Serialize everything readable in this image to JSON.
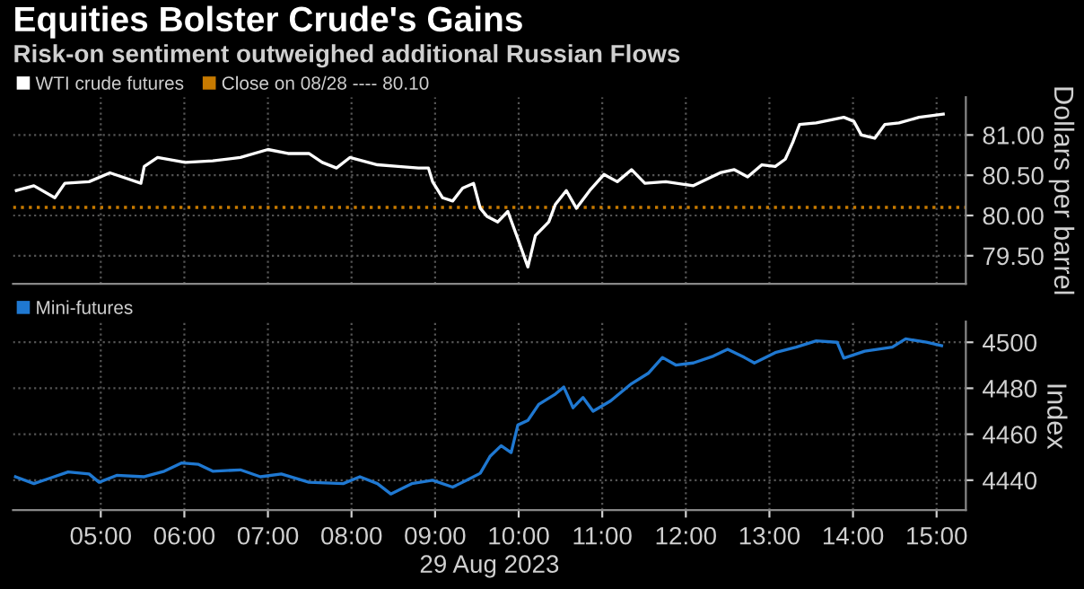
{
  "chart_data": [
    {
      "type": "line",
      "title": "Equities Bolster Crude's Gains",
      "subtitle": "Risk-on sentiment outweighed additional Russian Flows",
      "ylabel": "Dollars per barrel",
      "legend": "top left",
      "grid": true,
      "tick_labels": "y",
      "xlim": [
        3.95,
        15.35
      ],
      "xticks": [
        {
          "value": 5,
          "label": null
        },
        {
          "value": 6,
          "label": null
        },
        {
          "value": 7,
          "label": null
        },
        {
          "value": 8,
          "label": null
        },
        {
          "value": 9,
          "label": null
        },
        {
          "value": 10,
          "label": null
        },
        {
          "value": 11,
          "label": null
        },
        {
          "value": 12,
          "label": null
        },
        {
          "value": 13,
          "label": null
        },
        {
          "value": 14,
          "label": null
        },
        {
          "value": 15,
          "label": null
        }
      ],
      "ylim": [
        79.15,
        81.47
      ],
      "yticks": [
        {
          "value": 79.5,
          "label": "79.50"
        },
        {
          "value": 80,
          "label": "80.00"
        },
        {
          "value": 80.5,
          "label": "80.50"
        },
        {
          "value": 81,
          "label": "81.00"
        }
      ],
      "ref_lines": [
        {
          "axis": "y",
          "value": 80.1,
          "label": "Close on 08/28 ---- 80.10",
          "color": "#c77a00",
          "line_style": "dotted"
        }
      ],
      "series": [
        {
          "name": "WTI crude futures",
          "color": "#ffffff",
          "x": [
            3.99,
            4.2,
            4.45,
            4.57,
            4.86,
            5.11,
            5.31,
            5.48,
            5.52,
            5.68,
            6.01,
            6.34,
            6.67,
            7.0,
            7.24,
            7.49,
            7.65,
            7.82,
            7.98,
            8.31,
            8.56,
            8.8,
            8.92,
            8.97,
            9.09,
            9.21,
            9.33,
            9.46,
            9.54,
            9.62,
            9.75,
            9.87,
            9.99,
            10.11,
            10.2,
            10.36,
            10.44,
            10.57,
            10.69,
            10.85,
            11.02,
            11.18,
            11.35,
            11.51,
            11.76,
            12.09,
            12.41,
            12.58,
            12.74,
            12.91,
            13.07,
            13.19,
            13.28,
            13.36,
            13.56,
            13.89,
            14.01,
            14.1,
            14.26,
            14.38,
            14.55,
            14.79,
            15.08
          ],
          "values": [
            80.31,
            80.37,
            80.22,
            80.4,
            80.42,
            80.53,
            80.46,
            80.4,
            80.61,
            80.72,
            80.66,
            80.68,
            80.72,
            80.82,
            80.77,
            80.77,
            80.66,
            80.59,
            80.72,
            80.63,
            80.61,
            80.59,
            80.59,
            80.42,
            80.22,
            80.18,
            80.34,
            80.4,
            80.09,
            79.99,
            79.92,
            80.05,
            79.71,
            79.36,
            79.75,
            79.92,
            80.14,
            80.31,
            80.09,
            80.31,
            80.51,
            80.42,
            80.57,
            80.4,
            80.42,
            80.37,
            80.53,
            80.57,
            80.48,
            80.63,
            80.61,
            80.7,
            80.91,
            81.13,
            81.15,
            81.22,
            81.17,
            81.0,
            80.96,
            81.13,
            81.15,
            81.22,
            81.26
          ]
        }
      ]
    },
    {
      "type": "line",
      "xlabel": "29 Aug 2023",
      "ylabel": "Index",
      "legend": "top left",
      "grid": true,
      "xlim": [
        3.95,
        15.35
      ],
      "xticks": [
        {
          "value": 5,
          "label": "05:00"
        },
        {
          "value": 6,
          "label": "06:00"
        },
        {
          "value": 7,
          "label": "07:00"
        },
        {
          "value": 8,
          "label": "08:00"
        },
        {
          "value": 9,
          "label": "09:00"
        },
        {
          "value": 10,
          "label": "10:00"
        },
        {
          "value": 11,
          "label": "11:00"
        },
        {
          "value": 12,
          "label": "12:00"
        },
        {
          "value": 13,
          "label": "13:00"
        },
        {
          "value": 14,
          "label": "14:00"
        },
        {
          "value": 15,
          "label": "15:00"
        }
      ],
      "ylim": [
        4427,
        4509
      ],
      "yticks": [
        4440,
        4460,
        4480,
        4500
      ],
      "series": [
        {
          "name": "Mini-futures",
          "color": "#1f78d1",
          "x": [
            3.98,
            4.2,
            4.37,
            4.61,
            4.86,
            4.98,
            5.19,
            5.52,
            5.76,
            5.97,
            6.17,
            6.34,
            6.67,
            6.91,
            7.16,
            7.49,
            7.9,
            8.1,
            8.31,
            8.47,
            8.72,
            8.97,
            9.21,
            9.38,
            9.54,
            9.66,
            9.79,
            9.91,
            9.99,
            10.11,
            10.24,
            10.44,
            10.54,
            10.65,
            10.77,
            10.89,
            11.1,
            11.35,
            11.55,
            11.72,
            11.88,
            12.09,
            12.33,
            12.5,
            12.7,
            12.82,
            13.07,
            13.32,
            13.56,
            13.81,
            13.89,
            14.14,
            14.47,
            14.63,
            14.88,
            15.06
          ],
          "values": [
            4441.5,
            4438.5,
            4440.6,
            4443.6,
            4442.7,
            4439.1,
            4442.1,
            4441.5,
            4443.9,
            4447.5,
            4446.9,
            4443.9,
            4444.5,
            4441.5,
            4442.7,
            4439.1,
            4438.5,
            4441.5,
            4438.5,
            4434.0,
            4438.5,
            4440.0,
            4437.0,
            4440.0,
            4443.0,
            4450.5,
            4455.0,
            4452.0,
            4464.0,
            4466.0,
            4473.0,
            4477.5,
            4480.5,
            4471.5,
            4476.0,
            4470.0,
            4474.5,
            4482.0,
            4486.5,
            4493.4,
            4490.1,
            4491.0,
            4494.0,
            4497.0,
            4493.4,
            4491.0,
            4495.5,
            4497.9,
            4500.6,
            4500.0,
            4493.1,
            4496.1,
            4497.9,
            4501.5,
            4500.0,
            4498.5
          ]
        }
      ]
    }
  ]
}
